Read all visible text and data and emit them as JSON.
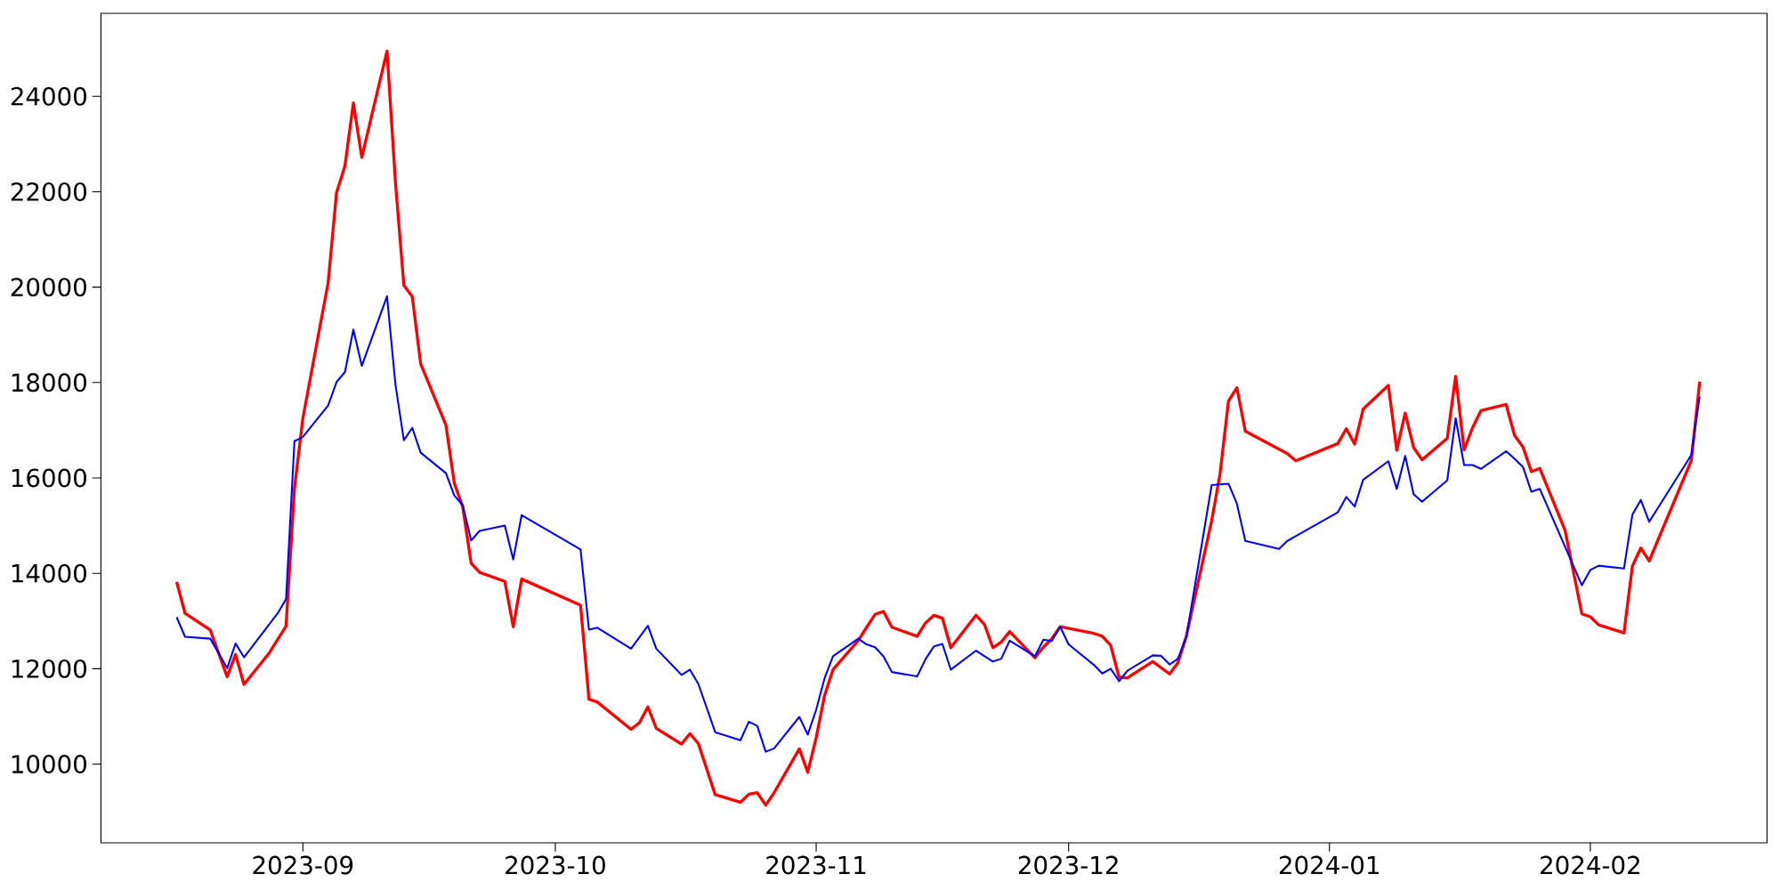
{
  "chart_data": {
    "type": "line",
    "line_style": "solid",
    "marker": "none",
    "grid": false,
    "xlim": [
      "2023-08-08",
      "2024-02-22"
    ],
    "xticks": [
      "2023-09",
      "2023-10",
      "2023-11",
      "2023-12",
      "2024-01",
      "2024-02"
    ],
    "ylim": [
      8350,
      25740
    ],
    "yticks": [
      10000,
      12000,
      14000,
      16000,
      18000,
      20000,
      22000,
      24000
    ],
    "series": [
      {
        "color": "#ff0000",
        "x": [
          "2023-08-17",
          "2023-08-18",
          "2023-08-21",
          "2023-08-23",
          "2023-08-24",
          "2023-08-25",
          "2023-08-28",
          "2023-08-30",
          "2023-08-31",
          "2023-09-01",
          "2023-09-04",
          "2023-09-05",
          "2023-09-06",
          "2023-09-07",
          "2023-09-08",
          "2023-09-11",
          "2023-09-12",
          "2023-09-13",
          "2023-09-14",
          "2023-09-15",
          "2023-09-18",
          "2023-09-19",
          "2023-09-20",
          "2023-09-21",
          "2023-09-22",
          "2023-09-25",
          "2023-09-26",
          "2023-09-27",
          "2023-10-04",
          "2023-10-05",
          "2023-10-06",
          "2023-10-10",
          "2023-10-11",
          "2023-10-12",
          "2023-10-13",
          "2023-10-16",
          "2023-10-17",
          "2023-10-18",
          "2023-10-20",
          "2023-10-23",
          "2023-10-24",
          "2023-10-25",
          "2023-10-26",
          "2023-10-27",
          "2023-10-30",
          "2023-10-31",
          "2023-11-01",
          "2023-11-02",
          "2023-11-03",
          "2023-11-06",
          "2023-11-07",
          "2023-11-08",
          "2023-11-09",
          "2023-11-10",
          "2023-11-13",
          "2023-11-14",
          "2023-11-15",
          "2023-11-16",
          "2023-11-17",
          "2023-11-20",
          "2023-11-21",
          "2023-11-22",
          "2023-11-23",
          "2023-11-24",
          "2023-11-27",
          "2023-11-28",
          "2023-11-29",
          "2023-11-30",
          "2023-12-04",
          "2023-12-05",
          "2023-12-06",
          "2023-12-07",
          "2023-12-08",
          "2023-12-11",
          "2023-12-13",
          "2023-12-14",
          "2023-12-15",
          "2023-12-18",
          "2023-12-19",
          "2023-12-20",
          "2023-12-21",
          "2023-12-22",
          "2023-12-27",
          "2023-12-28",
          "2024-01-02",
          "2024-01-03",
          "2024-01-04",
          "2024-01-05",
          "2024-01-08",
          "2024-01-09",
          "2024-01-10",
          "2024-01-11",
          "2024-01-12",
          "2024-01-15",
          "2024-01-16",
          "2024-01-17",
          "2024-01-18",
          "2024-01-19",
          "2024-01-22",
          "2024-01-23",
          "2024-01-24",
          "2024-01-25",
          "2024-01-26",
          "2024-01-29",
          "2024-01-31",
          "2024-02-01",
          "2024-02-02",
          "2024-02-05",
          "2024-02-06",
          "2024-02-07",
          "2024-02-08",
          "2024-02-13",
          "2024-02-14"
        ],
        "values": [
          13820,
          13160,
          12810,
          11830,
          12300,
          11670,
          12330,
          12890,
          15780,
          17250,
          20090,
          21980,
          22540,
          23860,
          22720,
          24950,
          22200,
          20040,
          19800,
          18390,
          17110,
          15890,
          15390,
          14210,
          14020,
          13830,
          12880,
          13880,
          13330,
          11360,
          11300,
          10730,
          10870,
          11200,
          10750,
          10420,
          10640,
          10430,
          9360,
          9200,
          9370,
          9400,
          9140,
          9400,
          10320,
          9830,
          10550,
          11440,
          11980,
          12590,
          12870,
          13140,
          13200,
          12870,
          12680,
          12960,
          13120,
          13060,
          12440,
          13120,
          12930,
          12440,
          12560,
          12780,
          12230,
          12450,
          12630,
          12880,
          12740,
          12680,
          12490,
          11820,
          11810,
          12150,
          11890,
          12130,
          12690,
          15100,
          16090,
          17610,
          17890,
          16980,
          16510,
          16360,
          16720,
          17030,
          16710,
          17440,
          17940,
          16580,
          17360,
          16640,
          16380,
          16830,
          18130,
          16590,
          17050,
          17410,
          17540,
          16890,
          16650,
          16130,
          16200,
          14900,
          13150,
          13090,
          12920,
          12750,
          14150,
          14530,
          14260,
          16360,
          18020
        ]
      },
      {
        "color": "#0000ff",
        "x": [
          "2023-08-17",
          "2023-08-18",
          "2023-08-21",
          "2023-08-23",
          "2023-08-24",
          "2023-08-25",
          "2023-08-29",
          "2023-08-30",
          "2023-08-31",
          "2023-09-01",
          "2023-09-04",
          "2023-09-05",
          "2023-09-06",
          "2023-09-07",
          "2023-09-08",
          "2023-09-11",
          "2023-09-12",
          "2023-09-13",
          "2023-09-14",
          "2023-09-15",
          "2023-09-18",
          "2023-09-19",
          "2023-09-20",
          "2023-09-21",
          "2023-09-22",
          "2023-09-25",
          "2023-09-26",
          "2023-09-27",
          "2023-10-04",
          "2023-10-05",
          "2023-10-06",
          "2023-10-10",
          "2023-10-12",
          "2023-10-13",
          "2023-10-16",
          "2023-10-17",
          "2023-10-18",
          "2023-10-20",
          "2023-10-23",
          "2023-10-24",
          "2023-10-25",
          "2023-10-26",
          "2023-10-27",
          "2023-10-30",
          "2023-10-31",
          "2023-11-01",
          "2023-11-02",
          "2023-11-03",
          "2023-11-06",
          "2023-11-07",
          "2023-11-08",
          "2023-11-09",
          "2023-11-10",
          "2023-11-13",
          "2023-11-14",
          "2023-11-15",
          "2023-11-16",
          "2023-11-17",
          "2023-11-20",
          "2023-11-22",
          "2023-11-23",
          "2023-11-24",
          "2023-11-27",
          "2023-11-28",
          "2023-11-29",
          "2023-11-30",
          "2023-12-01",
          "2023-12-04",
          "2023-12-05",
          "2023-12-06",
          "2023-12-07",
          "2023-12-08",
          "2023-12-11",
          "2023-12-12",
          "2023-12-13",
          "2023-12-14",
          "2023-12-15",
          "2023-12-18",
          "2023-12-20",
          "2023-12-21",
          "2023-12-22",
          "2023-12-26",
          "2023-12-27",
          "2023-12-28",
          "2024-01-02",
          "2024-01-03",
          "2024-01-04",
          "2024-01-05",
          "2024-01-08",
          "2024-01-09",
          "2024-01-10",
          "2024-01-11",
          "2024-01-12",
          "2024-01-15",
          "2024-01-16",
          "2024-01-17",
          "2024-01-18",
          "2024-01-19",
          "2024-01-22",
          "2024-01-23",
          "2024-01-24",
          "2024-01-25",
          "2024-01-26",
          "2024-01-31",
          "2024-02-01",
          "2024-02-02",
          "2024-02-05",
          "2024-02-06",
          "2024-02-07",
          "2024-02-08",
          "2024-02-13",
          "2024-02-14"
        ],
        "values": [
          13080,
          12670,
          12630,
          12010,
          12530,
          12240,
          13160,
          13460,
          16770,
          16860,
          17520,
          18010,
          18220,
          19110,
          18350,
          19810,
          17960,
          16790,
          17050,
          16530,
          16100,
          15630,
          15430,
          14690,
          14890,
          15000,
          14290,
          15220,
          14500,
          12820,
          12860,
          12420,
          12900,
          12420,
          11870,
          11980,
          11680,
          10670,
          10500,
          10890,
          10800,
          10260,
          10330,
          10990,
          10620,
          11140,
          11800,
          12260,
          12630,
          12510,
          12450,
          12260,
          11930,
          11840,
          12200,
          12470,
          12520,
          11980,
          12380,
          12150,
          12210,
          12590,
          12260,
          12610,
          12580,
          12880,
          12510,
          12080,
          11900,
          12000,
          11740,
          11960,
          12280,
          12270,
          12090,
          12210,
          12670,
          15850,
          15880,
          15460,
          14680,
          14510,
          14680,
          14780,
          15280,
          15600,
          15400,
          15960,
          16350,
          15770,
          16460,
          15660,
          15500,
          15950,
          17250,
          16270,
          16270,
          16190,
          16560,
          16400,
          16230,
          15710,
          15770,
          13750,
          14070,
          14160,
          14100,
          15230,
          15540,
          15080,
          16480,
          17710
        ]
      }
    ]
  }
}
